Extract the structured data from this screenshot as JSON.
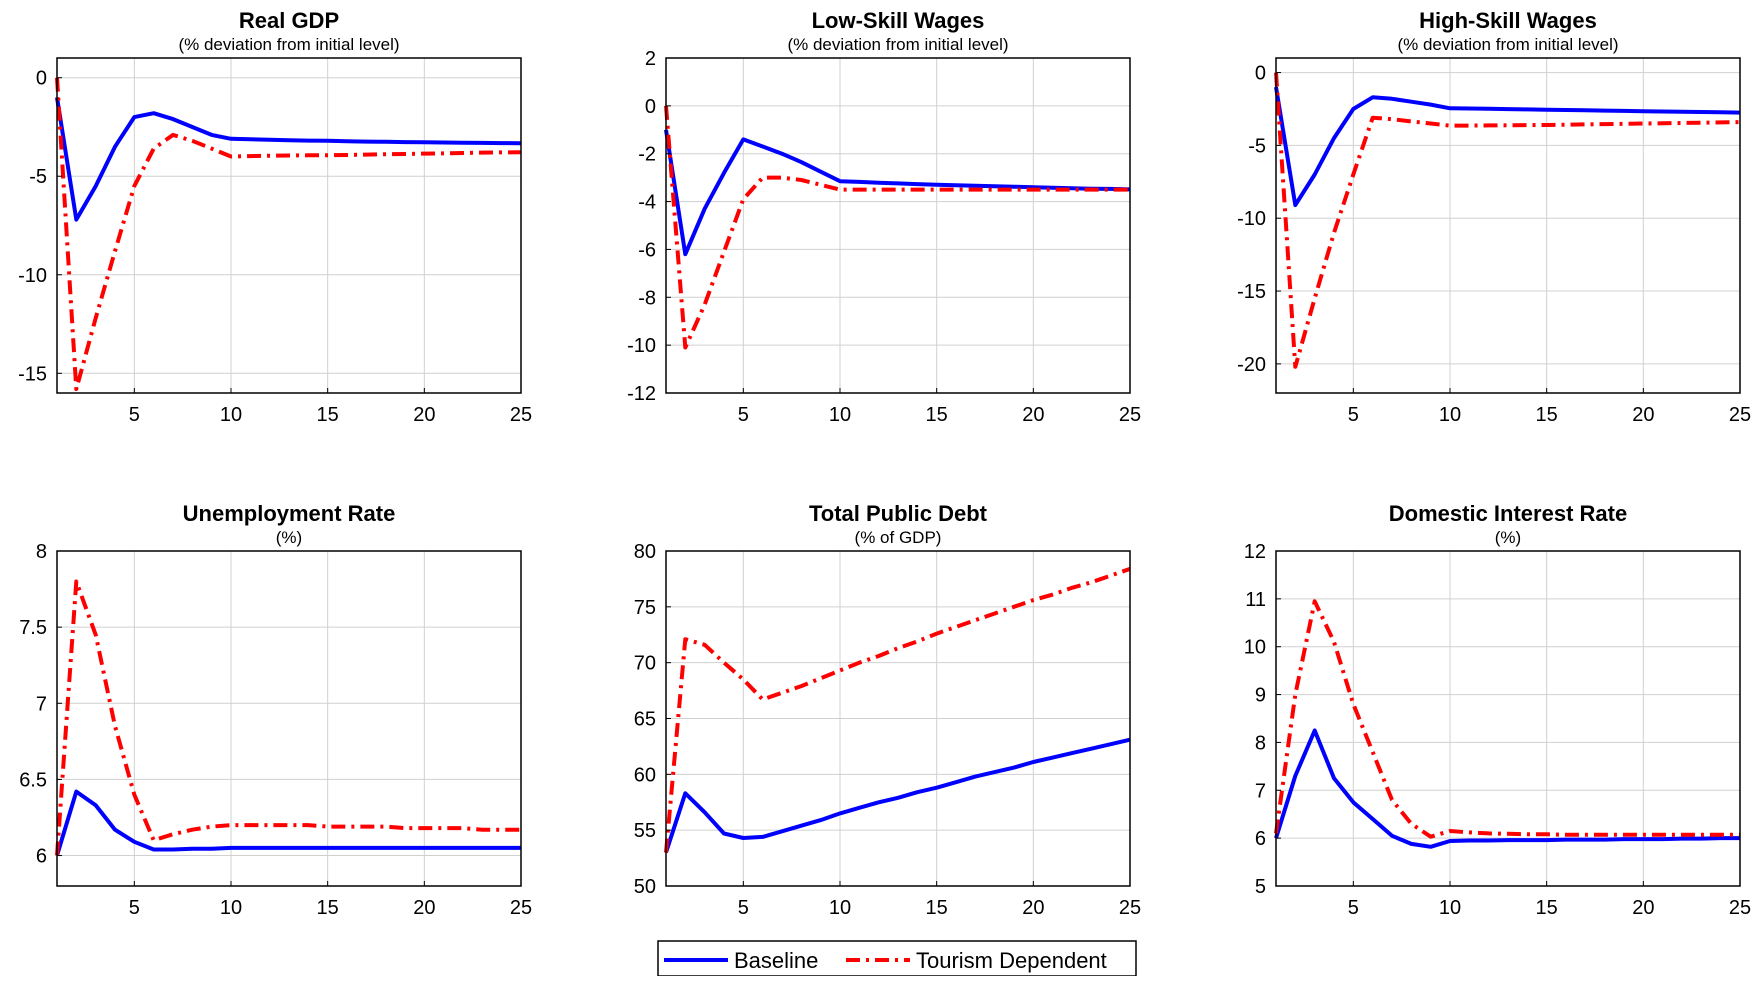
{
  "colors": {
    "baseline": "#0000ff",
    "tourism": "#ff0000",
    "grid": "#d0d0d0",
    "axis": "#000000"
  },
  "legend": {
    "placement": "bottom-center",
    "items": [
      "Baseline",
      "Tourism Dependent"
    ]
  },
  "chart_data": [
    {
      "type": "line",
      "title": "Real GDP",
      "subtitle": "(% deviation from initial level)",
      "xlim": [
        1,
        25
      ],
      "ylim": [
        -16,
        1
      ],
      "xticks": [
        5,
        10,
        15,
        20,
        25
      ],
      "yticks": [
        0,
        -5,
        -10,
        -15
      ],
      "grid": true,
      "x": [
        1,
        2,
        3,
        4,
        5,
        6,
        7,
        8,
        9,
        10,
        11,
        12,
        13,
        14,
        15,
        16,
        17,
        18,
        19,
        20,
        21,
        22,
        23,
        24,
        25
      ],
      "series": [
        {
          "name": "Baseline",
          "style": "solid",
          "values": [
            -1,
            -7.2,
            -5.5,
            -3.5,
            -2.0,
            -1.8,
            -2.1,
            -2.5,
            -2.9,
            -3.1,
            -3.12,
            -3.15,
            -3.17,
            -3.19,
            -3.2,
            -3.22,
            -3.24,
            -3.25,
            -3.27,
            -3.28,
            -3.29,
            -3.3,
            -3.31,
            -3.32,
            -3.33
          ]
        },
        {
          "name": "Tourism Dependent",
          "style": "dashdot",
          "values": [
            0,
            -15.8,
            -12.2,
            -8.8,
            -5.5,
            -3.6,
            -2.9,
            -3.2,
            -3.6,
            -4.0,
            -3.98,
            -3.96,
            -3.95,
            -3.94,
            -3.93,
            -3.92,
            -3.9,
            -3.88,
            -3.87,
            -3.85,
            -3.84,
            -3.82,
            -3.8,
            -3.79,
            -3.78
          ]
        }
      ]
    },
    {
      "type": "line",
      "title": "Low-Skill Wages",
      "subtitle": "(% deviation from initial level)",
      "xlim": [
        1,
        25
      ],
      "ylim": [
        -12,
        2
      ],
      "xticks": [
        5,
        10,
        15,
        20,
        25
      ],
      "yticks": [
        2,
        0,
        -2,
        -4,
        -6,
        -8,
        -10,
        -12
      ],
      "grid": true,
      "x": [
        1,
        2,
        3,
        4,
        5,
        6,
        7,
        8,
        9,
        10,
        11,
        12,
        13,
        14,
        15,
        16,
        17,
        18,
        19,
        20,
        21,
        22,
        23,
        24,
        25
      ],
      "series": [
        {
          "name": "Baseline",
          "style": "solid",
          "values": [
            -1,
            -6.2,
            -4.3,
            -2.8,
            -1.4,
            -1.7,
            -2.0,
            -2.35,
            -2.75,
            -3.15,
            -3.18,
            -3.21,
            -3.24,
            -3.27,
            -3.3,
            -3.32,
            -3.34,
            -3.36,
            -3.38,
            -3.4,
            -3.42,
            -3.44,
            -3.46,
            -3.47,
            -3.49
          ]
        },
        {
          "name": "Tourism Dependent",
          "style": "dashdot",
          "values": [
            0,
            -10.1,
            -8.3,
            -6.1,
            -3.9,
            -3.0,
            -3.0,
            -3.1,
            -3.3,
            -3.5,
            -3.5,
            -3.5,
            -3.5,
            -3.5,
            -3.5,
            -3.5,
            -3.5,
            -3.5,
            -3.5,
            -3.5,
            -3.5,
            -3.5,
            -3.5,
            -3.5,
            -3.5
          ]
        }
      ]
    },
    {
      "type": "line",
      "title": "High-Skill Wages",
      "subtitle": "(% deviation from initial level)",
      "xlim": [
        1,
        25
      ],
      "ylim": [
        -22,
        1
      ],
      "xticks": [
        5,
        10,
        15,
        20,
        25
      ],
      "yticks": [
        0,
        -5,
        -10,
        -15,
        -20
      ],
      "grid": true,
      "x": [
        1,
        2,
        3,
        4,
        5,
        6,
        7,
        8,
        9,
        10,
        11,
        12,
        13,
        14,
        15,
        16,
        17,
        18,
        19,
        20,
        21,
        22,
        23,
        24,
        25
      ],
      "series": [
        {
          "name": "Baseline",
          "style": "solid",
          "values": [
            -1,
            -9.1,
            -7.0,
            -4.5,
            -2.5,
            -1.7,
            -1.8,
            -2.0,
            -2.2,
            -2.45,
            -2.47,
            -2.49,
            -2.51,
            -2.53,
            -2.55,
            -2.57,
            -2.59,
            -2.61,
            -2.63,
            -2.65,
            -2.67,
            -2.69,
            -2.71,
            -2.73,
            -2.75
          ]
        },
        {
          "name": "Tourism Dependent",
          "style": "dashdot",
          "values": [
            0,
            -20.2,
            -15.5,
            -11.0,
            -7.0,
            -3.1,
            -3.2,
            -3.35,
            -3.5,
            -3.65,
            -3.64,
            -3.63,
            -3.62,
            -3.61,
            -3.6,
            -3.58,
            -3.56,
            -3.54,
            -3.52,
            -3.5,
            -3.48,
            -3.46,
            -3.44,
            -3.42,
            -3.4
          ]
        }
      ]
    },
    {
      "type": "line",
      "title": "Unemployment Rate",
      "subtitle": "(%)",
      "xlim": [
        1,
        25
      ],
      "ylim": [
        5.8,
        8
      ],
      "xticks": [
        5,
        10,
        15,
        20,
        25
      ],
      "yticks": [
        8,
        7.5,
        7,
        6.5,
        6
      ],
      "grid": true,
      "x": [
        1,
        2,
        3,
        4,
        5,
        6,
        7,
        8,
        9,
        10,
        11,
        12,
        13,
        14,
        15,
        16,
        17,
        18,
        19,
        20,
        21,
        22,
        23,
        24,
        25
      ],
      "series": [
        {
          "name": "Baseline",
          "style": "solid",
          "values": [
            6.0,
            6.42,
            6.33,
            6.17,
            6.09,
            6.04,
            6.04,
            6.045,
            6.045,
            6.05,
            6.05,
            6.05,
            6.05,
            6.05,
            6.05,
            6.05,
            6.05,
            6.05,
            6.05,
            6.05,
            6.05,
            6.05,
            6.05,
            6.05,
            6.05
          ]
        },
        {
          "name": "Tourism Dependent",
          "style": "dashdot",
          "values": [
            6.0,
            7.8,
            7.45,
            6.85,
            6.4,
            6.1,
            6.14,
            6.17,
            6.19,
            6.2,
            6.2,
            6.2,
            6.2,
            6.2,
            6.19,
            6.19,
            6.19,
            6.19,
            6.18,
            6.18,
            6.18,
            6.18,
            6.17,
            6.17,
            6.17
          ]
        }
      ]
    },
    {
      "type": "line",
      "title": "Total Public Debt",
      "subtitle": "(% of GDP)",
      "xlim": [
        1,
        25
      ],
      "ylim": [
        50,
        80
      ],
      "xticks": [
        5,
        10,
        15,
        20,
        25
      ],
      "yticks": [
        80,
        75,
        70,
        65,
        60,
        55,
        50
      ],
      "grid": true,
      "x": [
        1,
        2,
        3,
        4,
        5,
        6,
        7,
        8,
        9,
        10,
        11,
        12,
        13,
        14,
        15,
        16,
        17,
        18,
        19,
        20,
        21,
        22,
        23,
        24,
        25
      ],
      "series": [
        {
          "name": "Baseline",
          "style": "solid",
          "values": [
            53.0,
            58.3,
            56.6,
            54.7,
            54.3,
            54.4,
            54.9,
            55.4,
            55.9,
            56.5,
            57.0,
            57.5,
            57.9,
            58.4,
            58.8,
            59.3,
            59.8,
            60.2,
            60.6,
            61.1,
            61.5,
            61.9,
            62.3,
            62.7,
            63.1
          ]
        },
        {
          "name": "Tourism Dependent",
          "style": "dashdot",
          "values": [
            53.0,
            72.1,
            71.6,
            70.0,
            68.5,
            66.7,
            67.3,
            67.9,
            68.6,
            69.3,
            70.0,
            70.6,
            71.3,
            71.9,
            72.6,
            73.2,
            73.8,
            74.4,
            75.0,
            75.6,
            76.1,
            76.7,
            77.2,
            77.8,
            78.4
          ]
        }
      ]
    },
    {
      "type": "line",
      "title": "Domestic Interest Rate",
      "subtitle": "(%)",
      "xlim": [
        1,
        25
      ],
      "ylim": [
        5,
        12
      ],
      "xticks": [
        5,
        10,
        15,
        20,
        25
      ],
      "yticks": [
        12,
        11,
        10,
        9,
        8,
        7,
        6,
        5
      ],
      "grid": true,
      "x": [
        1,
        2,
        3,
        4,
        5,
        6,
        7,
        8,
        9,
        10,
        11,
        12,
        13,
        14,
        15,
        16,
        17,
        18,
        19,
        20,
        21,
        22,
        23,
        24,
        25
      ],
      "series": [
        {
          "name": "Baseline",
          "style": "solid",
          "values": [
            6.0,
            7.3,
            8.25,
            7.25,
            6.75,
            6.4,
            6.05,
            5.88,
            5.82,
            5.94,
            5.95,
            5.95,
            5.96,
            5.96,
            5.96,
            5.97,
            5.97,
            5.97,
            5.98,
            5.98,
            5.98,
            5.99,
            5.99,
            6.0,
            6.0
          ]
        },
        {
          "name": "Tourism Dependent",
          "style": "dashdot",
          "values": [
            6.1,
            9.0,
            10.95,
            10.1,
            8.8,
            7.8,
            6.8,
            6.3,
            6.03,
            6.15,
            6.12,
            6.1,
            6.09,
            6.08,
            6.08,
            6.07,
            6.07,
            6.07,
            6.07,
            6.07,
            6.07,
            6.07,
            6.07,
            6.07,
            6.07
          ]
        }
      ]
    }
  ]
}
